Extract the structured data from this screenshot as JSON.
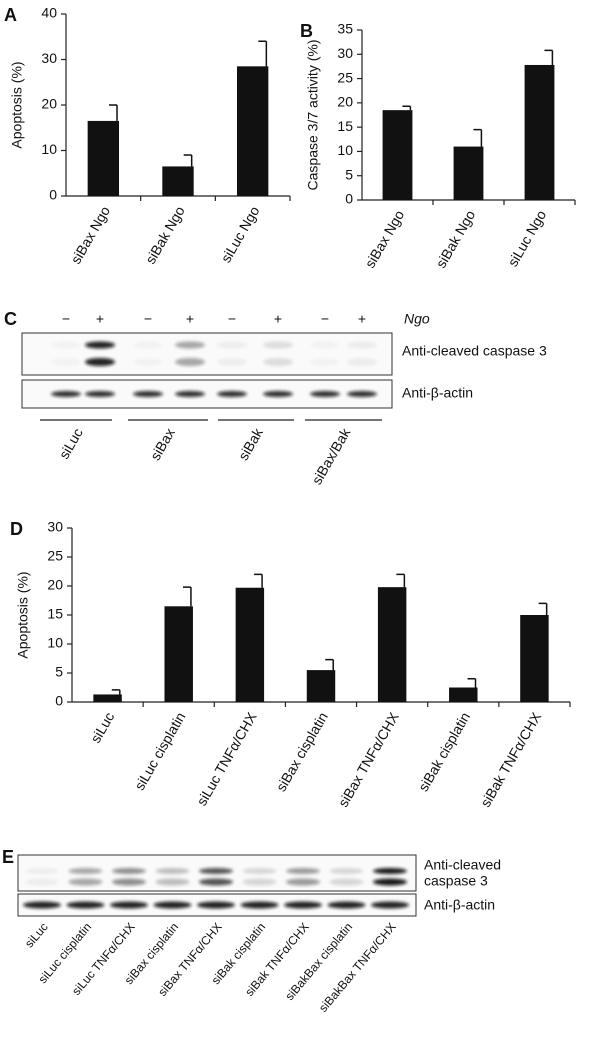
{
  "chart_data": [
    {
      "type": "bar",
      "panel": "A",
      "y_label": "Apoptosis (%)",
      "categories": [
        "siBax Ngo",
        "siBak Ngo",
        "siLuc Ngo"
      ],
      "values": [
        16.5,
        6.5,
        28.5
      ],
      "errors": [
        3.5,
        2.5,
        5.5
      ],
      "color": "#111111",
      "ylim": [
        0,
        40
      ],
      "yticks": [
        0,
        10,
        20,
        30,
        40
      ]
    },
    {
      "type": "bar",
      "panel": "B",
      "y_label": "Caspase 3/7 activity (%)",
      "categories": [
        "siBax Ngo",
        "siBak Ngo",
        "siLuc Ngo"
      ],
      "values": [
        18.5,
        11,
        27.8
      ],
      "errors": [
        0.8,
        3.5,
        3
      ],
      "color": "#111111",
      "ylim": [
        0,
        35
      ],
      "yticks": [
        0,
        5,
        10,
        15,
        20,
        25,
        30,
        35
      ]
    },
    {
      "type": "bar",
      "panel": "D",
      "y_label": "Apoptosis (%)",
      "categories": [
        "siLuc",
        "siLuc cisplatin",
        "siLuc TNFα/CHX",
        "siBax cisplatin",
        "siBax TNFα/CHX",
        "siBak cisplatin",
        "siBak TNFα/CHX"
      ],
      "values": [
        1.3,
        16.5,
        19.7,
        5.5,
        19.8,
        2.5,
        15
      ],
      "errors": [
        0.8,
        3.3,
        2.3,
        1.8,
        2.2,
        1.5,
        2
      ],
      "color": "#111111",
      "ylim": [
        0,
        30
      ],
      "yticks": [
        0,
        5,
        10,
        15,
        20,
        25,
        30
      ]
    }
  ],
  "blot_c": {
    "panel": "C",
    "treatment": "Ngo",
    "signs": [
      "−",
      "+",
      "−",
      "+",
      "−",
      "+",
      "−",
      "+"
    ],
    "cleaved_label": "Anti-cleaved caspase 3",
    "actin_label": "Anti-β-actin",
    "groups": [
      "siLuc",
      "siBax",
      "siBak",
      "siBax/Bak"
    ]
  },
  "blot_e": {
    "panel": "E",
    "cleaved_label": [
      "Anti-cleaved",
      "caspase 3"
    ],
    "actin_label": "Anti-β-actin",
    "lanes": [
      "siLuc",
      "siLuc cisplatin",
      "siLuc TNFα/CHX",
      "siBax cisplatin",
      "siBax TNFα/CHX",
      "siBak cisplatin",
      "siBak TNFα/CHX",
      "siBakBax cisplatin",
      "siBakBax TNFα/CHX"
    ]
  }
}
